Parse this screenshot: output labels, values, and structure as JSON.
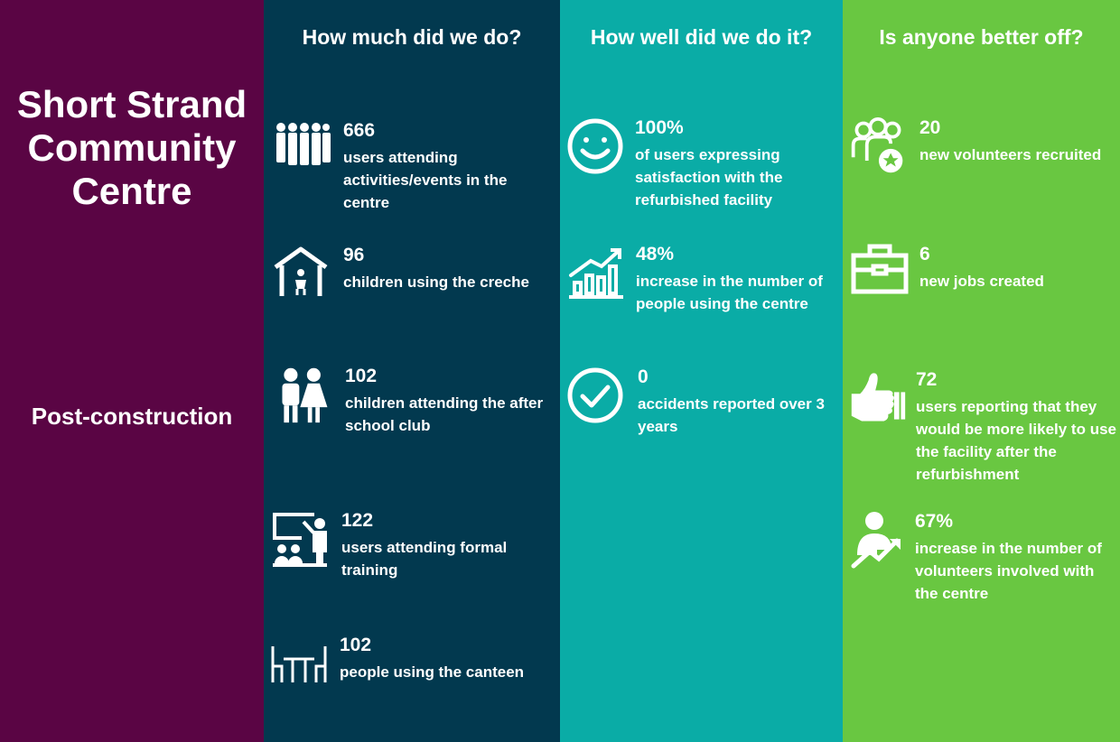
{
  "left": {
    "title_lines": [
      "Short Strand",
      "Community",
      "Centre"
    ],
    "phase": "Post-construction"
  },
  "columns": [
    {
      "header": "How much did we do?",
      "metrics": [
        {
          "value": "666",
          "desc": "users attending activities/events in the centre",
          "icon": "crowd-icon"
        },
        {
          "value": "96",
          "desc": "children using the creche",
          "icon": "creche-house-icon"
        },
        {
          "value": "102",
          "desc": "children attending the after school club",
          "icon": "children-icon"
        },
        {
          "value": "122",
          "desc": "users attending formal training",
          "icon": "training-board-icon"
        },
        {
          "value": "102",
          "desc": "people using the canteen",
          "icon": "canteen-table-icon"
        }
      ]
    },
    {
      "header": "How well did we do it?",
      "metrics": [
        {
          "value": "100%",
          "desc": "of users expressing satisfaction with the refurbished facility",
          "icon": "smiley-icon"
        },
        {
          "value": "48%",
          "desc": "increase in the number of people using the centre",
          "icon": "growth-chart-icon"
        },
        {
          "value": "0",
          "desc": "accidents reported over 3 years",
          "icon": "check-circle-icon"
        }
      ]
    },
    {
      "header": "Is anyone better off?",
      "metrics": [
        {
          "value": "20",
          "desc": "new volunteers recruited",
          "icon": "volunteers-star-icon"
        },
        {
          "value": "6",
          "desc": "new jobs created",
          "icon": "briefcase-icon"
        },
        {
          "value": "72",
          "desc": "users reporting that they would be more likely to use the facility after the refurbishment",
          "icon": "thumbs-up-icon"
        },
        {
          "value": "67%",
          "desc": "increase in the number of volunteers involved with the centre",
          "icon": "person-growth-icon"
        }
      ]
    }
  ],
  "colors": {
    "left_panel": "#5a0544",
    "quantity_panel": "#02394f",
    "quality_panel": "#0aaca6",
    "impact_panel": "#69c741",
    "text": "#ffffff"
  }
}
